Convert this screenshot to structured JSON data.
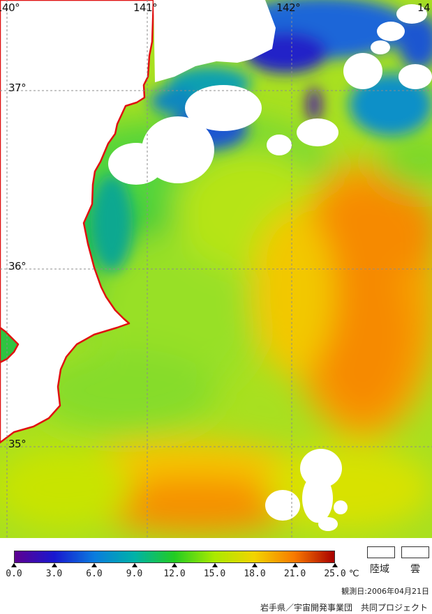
{
  "map": {
    "lon_labels": [
      "140°",
      "141°",
      "142°",
      "14"
    ],
    "lat_labels": [
      "37°",
      "36°",
      "35°"
    ]
  },
  "legend": {
    "scale_ticks": [
      "0.0",
      "3.0",
      "6.0",
      "9.0",
      "12.0",
      "15.0",
      "18.0",
      "21.0",
      "25.0"
    ],
    "unit": "℃",
    "land_label": "陸域",
    "cloud_label": "雲",
    "colors": [
      "#5e0090",
      "#1818d0",
      "#0a7cde",
      "#00b2a8",
      "#22cc22",
      "#aaea00",
      "#f2d400",
      "#f87a00",
      "#a80000"
    ]
  },
  "observation_date": "観測日:2006年04月21日",
  "credit": "岩手県／宇宙開発事業団　共同プロジェクト"
}
